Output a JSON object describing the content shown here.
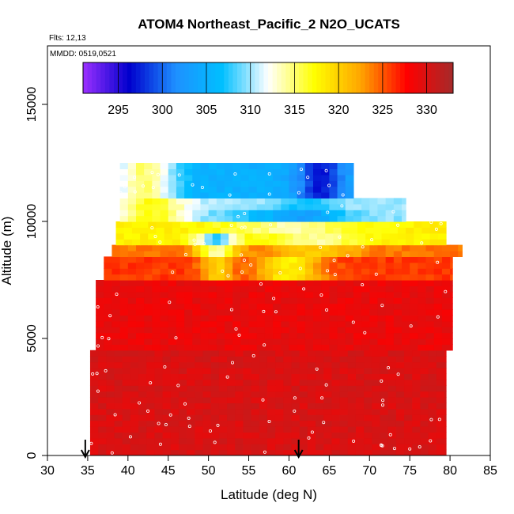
{
  "chart_data": {
    "type": "heatmap",
    "title": "ATOM4 Northeast_Pacific_2 N2O_UCATS",
    "flights_note": "Flts: 12,13",
    "dates_note": "MMDD: 0519,0521",
    "xlabel": "Latitude (deg N)",
    "ylabel": "Altitude (m)",
    "xlim": [
      30,
      85
    ],
    "ylim": [
      0,
      17500
    ],
    "x_ticks": [
      30,
      35,
      40,
      45,
      50,
      55,
      60,
      65,
      70,
      75,
      80,
      85
    ],
    "y_ticks": [
      0,
      5000,
      10000,
      15000
    ],
    "grid": false,
    "colorbar": {
      "range": [
        291,
        333
      ],
      "ticks": [
        295,
        300,
        305,
        310,
        315,
        320,
        325,
        330
      ],
      "colors": [
        "#9b30ff",
        "#0000cd",
        "#1e90ff",
        "#00bfff",
        "#ffffff",
        "#ffff00",
        "#ffa500",
        "#ff0000",
        "#a52a2a"
      ],
      "placement": "top inside plot"
    },
    "arrows_lat": [
      34.7,
      61.2
    ],
    "data_extent": {
      "lat_range": [
        35.3,
        81.5
      ],
      "alt_range": [
        0,
        12500
      ]
    },
    "layers": [
      {
        "alt": [
          0,
          4500
        ],
        "lat": [
          35.3,
          79.5
        ],
        "value": 330
      },
      {
        "alt": [
          4500,
          7500
        ],
        "lat": [
          36.0,
          80.3
        ],
        "value": 329
      },
      {
        "alt": [
          7500,
          8500
        ],
        "lat": [
          37.0,
          80.3
        ],
        "value": 326
      },
      {
        "alt": [
          8500,
          9000
        ],
        "lat": [
          38.0,
          81.5
        ],
        "value": 324
      },
      {
        "alt": [
          9000,
          10000
        ],
        "lat": [
          38.5,
          79.5
        ],
        "value": 318
      },
      {
        "alt": [
          10000,
          11000
        ],
        "lat": [
          39.0,
          74.5
        ],
        "value": 310
      },
      {
        "alt": [
          11000,
          12500
        ],
        "lat": [
          39.0,
          68.0
        ],
        "value": 305
      }
    ]
  }
}
